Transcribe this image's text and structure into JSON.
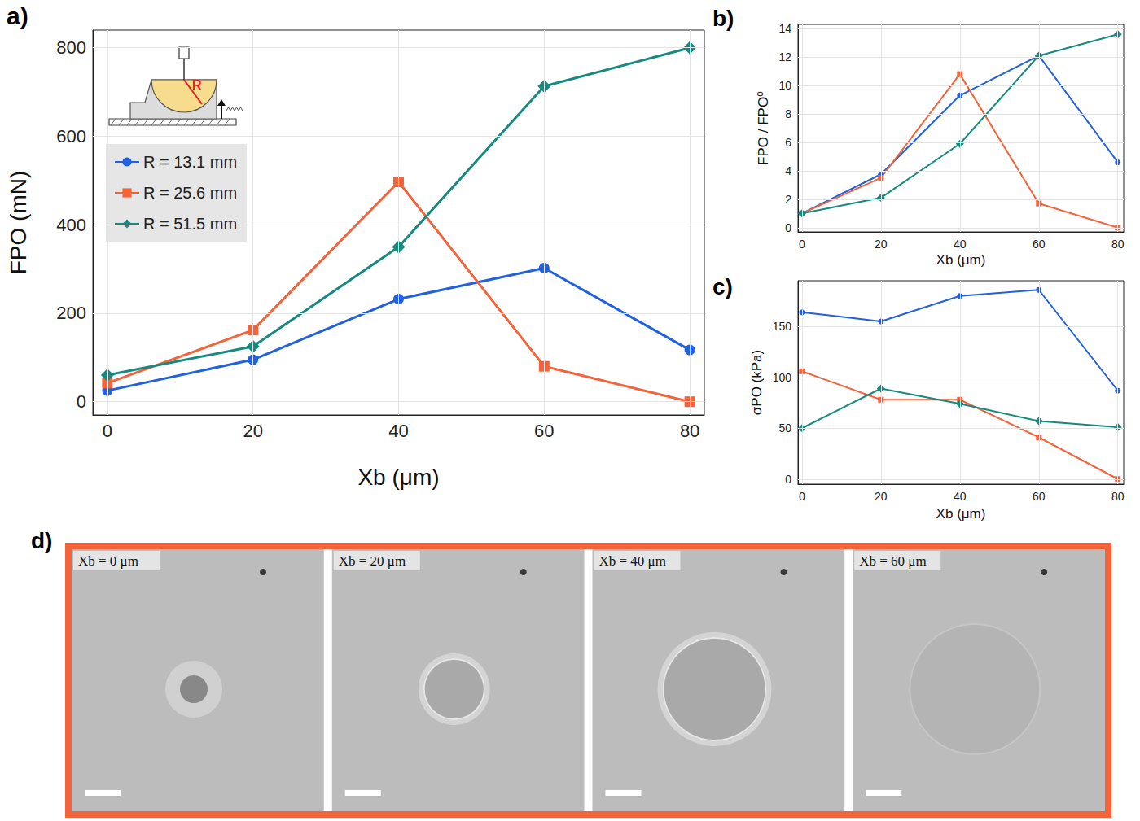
{
  "chart_data": [
    {
      "panel_label": "a)",
      "type": "line",
      "xlabel": "Xb (μm)",
      "ylabel": "FPO (mN)",
      "inset_label": "R",
      "x": [
        0,
        20,
        40,
        60,
        80
      ],
      "series": [
        {
          "name": "R = 13.1 mm",
          "color": "#2160e0",
          "marker": "circle",
          "values": [
            25,
            95,
            232,
            302,
            117
          ]
        },
        {
          "name": "R = 25.6 mm",
          "color": "#f4633a",
          "marker": "square",
          "values": [
            42,
            162,
            497,
            80,
            0
          ]
        },
        {
          "name": "R = 51.5 mm",
          "color": "#178a80",
          "marker": "diamond",
          "values": [
            60,
            125,
            350,
            713,
            800
          ]
        }
      ],
      "xlim": [
        -2,
        82
      ],
      "ylim": [
        -30,
        840
      ],
      "xticks": [
        0,
        20,
        40,
        60,
        80
      ],
      "yticks": [
        0,
        200,
        400,
        600,
        800
      ],
      "grid": true,
      "legend": "upper left"
    },
    {
      "panel_label": "b)",
      "type": "line",
      "xlabel": "Xb (μm)",
      "ylabel": "FPO / FPO⁰",
      "x": [
        0,
        20,
        40,
        60,
        80
      ],
      "series": [
        {
          "color": "#2160e0",
          "marker": "circle",
          "values": [
            1,
            3.75,
            9.3,
            12.1,
            4.6
          ]
        },
        {
          "color": "#f4633a",
          "marker": "square",
          "values": [
            1,
            3.5,
            10.8,
            1.7,
            0
          ]
        },
        {
          "color": "#178a80",
          "marker": "diamond",
          "values": [
            1,
            2.1,
            5.9,
            12.1,
            13.6
          ]
        }
      ],
      "xlim": [
        -1,
        81.5
      ],
      "ylim": [
        -0.3,
        14.3
      ],
      "xticks": [
        0,
        20,
        40,
        60,
        80
      ],
      "yticks": [
        0,
        2,
        4,
        6,
        8,
        10,
        12,
        14
      ],
      "grid": true
    },
    {
      "panel_label": "c)",
      "type": "line",
      "xlabel": "Xb (μm)",
      "ylabel": "σPO (kPa)",
      "x": [
        0,
        20,
        40,
        60,
        80
      ],
      "series": [
        {
          "color": "#2160e0",
          "marker": "circle",
          "values": [
            164,
            155,
            180,
            186,
            87
          ]
        },
        {
          "color": "#f4633a",
          "marker": "square",
          "values": [
            106,
            78,
            78,
            41,
            0
          ]
        },
        {
          "color": "#178a80",
          "marker": "diamond",
          "values": [
            50,
            89,
            74,
            57,
            51
          ]
        }
      ],
      "xlim": [
        -1,
        81.5
      ],
      "ylim": [
        -5,
        195
      ],
      "xticks": [
        0,
        20,
        40,
        60,
        80
      ],
      "yticks": [
        0,
        50,
        100,
        150
      ],
      "grid": true
    }
  ],
  "image_panel": {
    "panel_label": "d)",
    "frame_color": "#f4633a",
    "labels": [
      "Xb = 0 μm",
      "Xb = 20 μm",
      "Xb = 40 μm",
      "Xb = 60 μm"
    ]
  }
}
